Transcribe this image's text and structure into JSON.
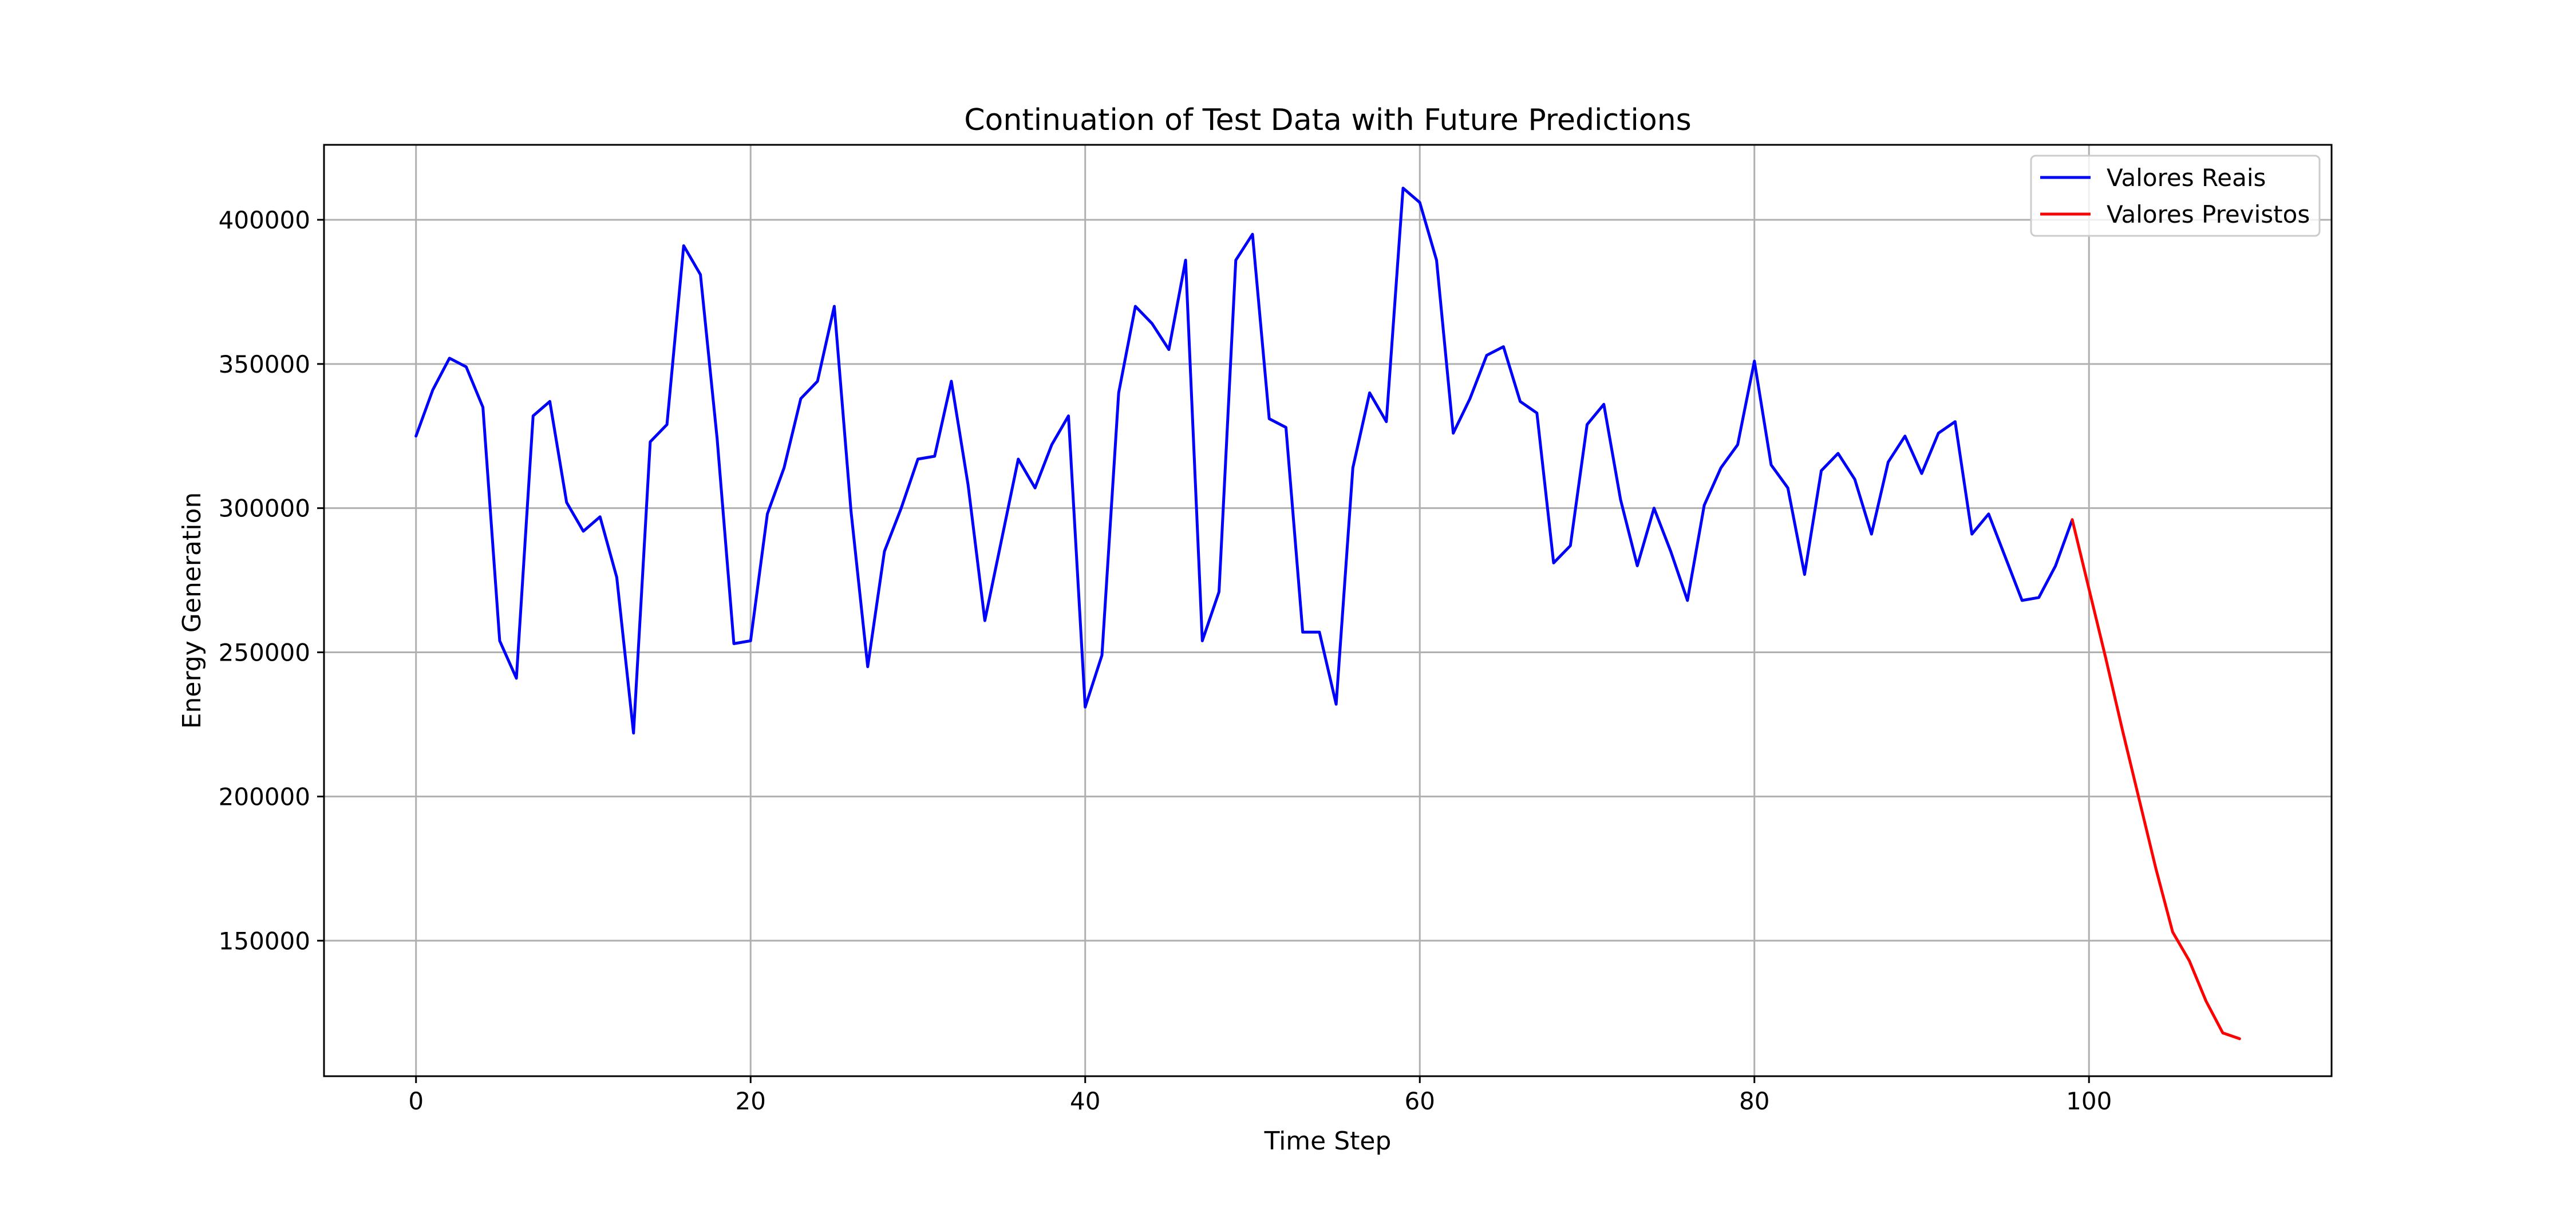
{
  "chart_data": {
    "type": "line",
    "title": "Continuation of Test Data with Future Predictions",
    "xlabel": "Time Step",
    "ylabel": "Energy Generation",
    "xlim": [
      -5.5,
      114.5
    ],
    "ylim": [
      103000,
      426000
    ],
    "xticks": [
      0,
      20,
      40,
      60,
      80,
      100
    ],
    "yticks": [
      150000,
      200000,
      250000,
      300000,
      350000,
      400000
    ],
    "grid": true,
    "legend_position": "top-right",
    "series": [
      {
        "name": "Valores Reais",
        "color": "#0000ff",
        "x_start": 0,
        "values": [
          325000,
          341000,
          352000,
          349000,
          335000,
          254000,
          241000,
          332000,
          337000,
          302000,
          292000,
          297000,
          276000,
          222000,
          323000,
          329000,
          391000,
          381000,
          324000,
          253000,
          254000,
          298000,
          314000,
          338000,
          344000,
          370000,
          299000,
          245000,
          285000,
          300000,
          317000,
          318000,
          344000,
          308000,
          261000,
          289000,
          317000,
          307000,
          322000,
          332000,
          231000,
          249000,
          340000,
          370000,
          364000,
          355000,
          386000,
          254000,
          271000,
          386000,
          395000,
          331000,
          328000,
          257000,
          257000,
          232000,
          314000,
          340000,
          330000,
          411000,
          406000,
          386000,
          326000,
          338000,
          353000,
          356000,
          337000,
          333000,
          281000,
          287000,
          329000,
          336000,
          303000,
          280000,
          300000,
          285000,
          268000,
          301000,
          314000,
          322000,
          351000,
          315000,
          307000,
          277000,
          313000,
          319000,
          310000,
          291000,
          316000,
          325000,
          312000,
          326000,
          330000,
          291000,
          298000,
          283000,
          268000,
          269000,
          280000,
          296000
        ]
      },
      {
        "name": "Valores Previstos",
        "color": "#ff0000",
        "x_start": 99,
        "values": [
          296000,
          272000,
          248000,
          223000,
          199000,
          175000,
          153000,
          143000,
          129000,
          118000,
          116000
        ]
      }
    ]
  }
}
